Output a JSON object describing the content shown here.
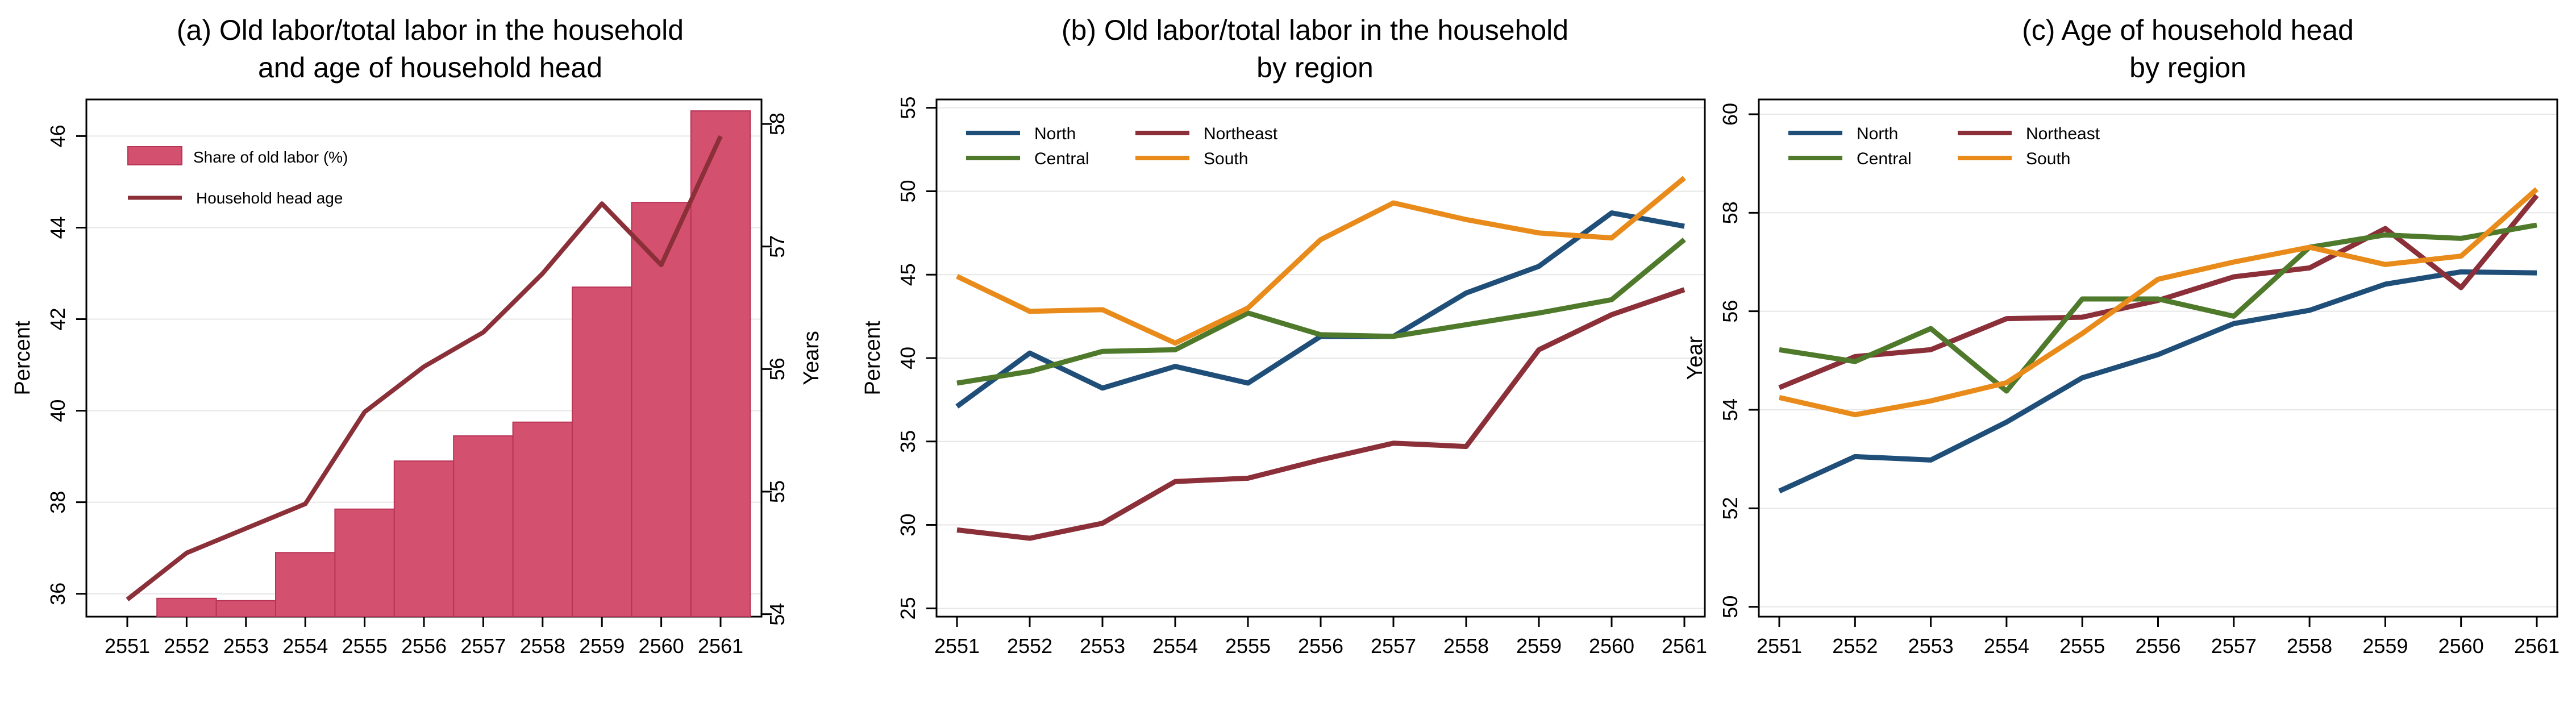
{
  "colors": {
    "north": "#1f4e79",
    "northeast": "#8b2f39",
    "central": "#4f7a2b",
    "south": "#e88b1a",
    "bar": "#d4506f",
    "bar_edge": "#b83457",
    "age_line": "#8b2f39",
    "grid": "#e6e6e6"
  },
  "chart_data": [
    {
      "type": "bar",
      "title": [
        "(a) Old labor/total labor in the household",
        "and age of household head"
      ],
      "categories": [
        "2551",
        "2552",
        "2553",
        "2554",
        "2555",
        "2556",
        "2557",
        "2558",
        "2559",
        "2560",
        "2561"
      ],
      "ylabel": "Percent",
      "y2label": "Years",
      "ylim": [
        35.5,
        46.8
      ],
      "yticks": [
        36,
        38,
        40,
        42,
        44,
        46
      ],
      "y2lim": [
        53.98,
        58.2
      ],
      "y2ticks": [
        54,
        55,
        56,
        57,
        58
      ],
      "grid": true,
      "legend_position": "top-left",
      "series": [
        {
          "name": "Share of old labor (%)",
          "kind": "bar",
          "axis": "left",
          "values": [
            null,
            35.9,
            35.85,
            36.9,
            37.85,
            38.9,
            39.45,
            39.75,
            42.7,
            44.55,
            46.55
          ]
        },
        {
          "name": "Household head age",
          "kind": "line",
          "axis": "right",
          "values": [
            54.12,
            54.5,
            54.7,
            54.9,
            55.65,
            56.02,
            56.3,
            56.78,
            57.35,
            56.85,
            57.9
          ]
        }
      ]
    },
    {
      "type": "line",
      "title": [
        "(b) Old labor/total labor in the household",
        "by region"
      ],
      "categories": [
        "2551",
        "2552",
        "2553",
        "2554",
        "2555",
        "2556",
        "2557",
        "2558",
        "2559",
        "2560",
        "2561"
      ],
      "ylabel": "Percent",
      "ylim": [
        24.5,
        55.5
      ],
      "yticks": [
        25,
        30,
        35,
        40,
        45,
        50,
        55
      ],
      "grid": true,
      "legend_position": "top-left",
      "series": [
        {
          "name": "North",
          "values": [
            37.1,
            40.3,
            38.2,
            39.5,
            38.5,
            41.3,
            41.3,
            43.9,
            45.5,
            48.7,
            47.9
          ]
        },
        {
          "name": "Northeast",
          "values": [
            29.7,
            29.2,
            30.1,
            32.6,
            32.8,
            33.9,
            34.9,
            34.7,
            40.5,
            42.6,
            44.1
          ]
        },
        {
          "name": "Central",
          "values": [
            38.5,
            39.2,
            40.4,
            40.5,
            42.7,
            41.4,
            41.3,
            42.0,
            42.7,
            43.5,
            47.1
          ]
        },
        {
          "name": "South",
          "values": [
            44.9,
            42.8,
            42.9,
            40.9,
            43.0,
            47.1,
            49.3,
            48.3,
            47.5,
            47.2,
            50.8
          ]
        }
      ]
    },
    {
      "type": "line",
      "title": [
        "(c) Age of household head",
        "by region"
      ],
      "categories": [
        "2551",
        "2552",
        "2553",
        "2554",
        "2555",
        "2556",
        "2557",
        "2558",
        "2559",
        "2560",
        "2561"
      ],
      "ylabel": "Year",
      "ylim": [
        49.8,
        60.3
      ],
      "yticks": [
        50,
        52,
        54,
        56,
        58,
        60
      ],
      "grid": true,
      "legend_position": "top-left",
      "series": [
        {
          "name": "North",
          "values": [
            52.35,
            53.05,
            52.98,
            53.75,
            54.65,
            55.12,
            55.75,
            56.02,
            56.55,
            56.8,
            56.78
          ]
        },
        {
          "name": "Northeast",
          "values": [
            54.45,
            55.08,
            55.22,
            55.85,
            55.88,
            56.22,
            56.7,
            56.88,
            57.68,
            56.48,
            58.35
          ]
        },
        {
          "name": "Central",
          "values": [
            55.22,
            54.98,
            55.65,
            54.38,
            56.25,
            56.25,
            55.9,
            57.3,
            57.55,
            57.48,
            57.75
          ]
        },
        {
          "name": "South",
          "values": [
            54.25,
            53.9,
            54.18,
            54.55,
            55.55,
            56.65,
            57.0,
            57.3,
            56.95,
            57.12,
            58.48
          ]
        }
      ]
    }
  ]
}
